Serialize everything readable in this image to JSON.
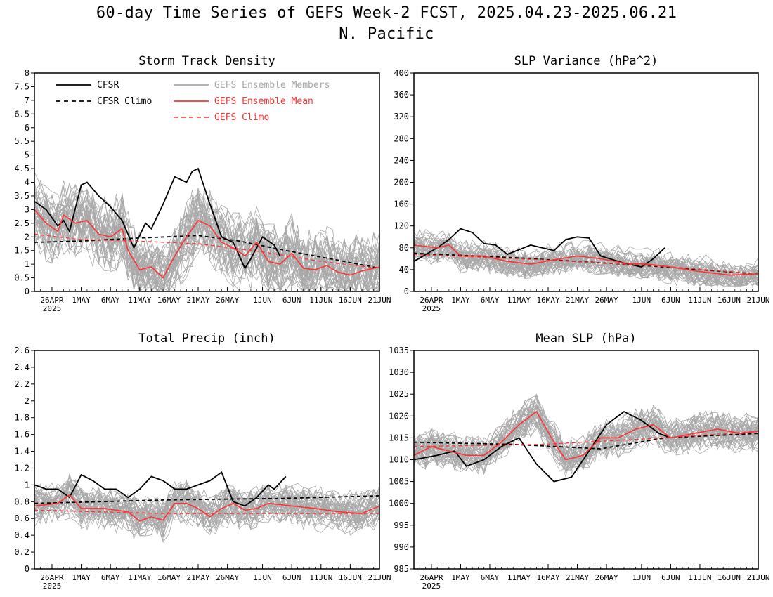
{
  "title": {
    "line1": "60-day Time Series of GEFS Week-2 FCST, 2025.04.23-2025.06.21",
    "line2": "N. Pacific"
  },
  "colors": {
    "cfsr": "#000000",
    "gefs_mean": "#ff3333",
    "gefs_members": "#a8a8a8",
    "gefs_climo": "#ff3333"
  },
  "legend": {
    "cfsr": "CFSR",
    "cfsr_climo": "CFSR Climo",
    "gefs_members": "GEFS Ensemble Members",
    "gefs_mean": "GEFS Ensemble Mean",
    "gefs_climo": "GEFS Climo",
    "placement": "top-left of Storm Track Density panel"
  },
  "x_axis": {
    "start_date": "2025-04-23",
    "end_date": "2025-06-21",
    "ticks": [
      "26APR",
      "1MAY",
      "6MAY",
      "11MAY",
      "16MAY",
      "21MAY",
      "26MAY",
      "1JUN",
      "6JUN",
      "11JUN",
      "16JUN",
      "21JUN"
    ],
    "tick_dates": [
      "2025-04-26",
      "2025-05-01",
      "2025-05-06",
      "2025-05-11",
      "2025-05-16",
      "2025-05-21",
      "2025-05-26",
      "2025-06-01",
      "2025-06-06",
      "2025-06-11",
      "2025-06-16",
      "2025-06-21"
    ],
    "year_label": "2025"
  },
  "chart_data": [
    {
      "type": "line",
      "title": "Storm Track Density",
      "ylim": [
        0,
        8
      ],
      "yticks": [
        "0",
        "0.5",
        "1",
        "1.5",
        "2",
        "2.5",
        "3",
        "3.5",
        "4",
        "4.5",
        "5",
        "5.5",
        "6",
        "6.5",
        "7",
        "7.5",
        "8"
      ],
      "grid": false,
      "series": [
        {
          "name": "CFSR",
          "x": [
            "2025-04-23",
            "2025-04-25",
            "2025-04-27",
            "2025-04-28",
            "2025-04-29",
            "2025-05-01",
            "2025-05-02",
            "2025-05-04",
            "2025-05-06",
            "2025-05-08",
            "2025-05-10",
            "2025-05-12",
            "2025-05-13",
            "2025-05-15",
            "2025-05-17",
            "2025-05-19",
            "2025-05-20",
            "2025-05-21",
            "2025-05-23",
            "2025-05-25",
            "2025-05-27",
            "2025-05-29",
            "2025-05-30",
            "2025-06-01",
            "2025-06-03",
            "2025-06-04"
          ],
          "values": [
            3.3,
            3.0,
            2.4,
            2.6,
            2.2,
            3.9,
            4.0,
            3.5,
            3.1,
            2.6,
            1.6,
            2.5,
            2.3,
            3.2,
            4.2,
            4.0,
            4.4,
            4.5,
            3.2,
            2.0,
            1.8,
            0.85,
            1.2,
            2.0,
            1.7,
            1.3
          ]
        },
        {
          "name": "CFSR Climo",
          "x": [
            "2025-04-23",
            "2025-05-01",
            "2025-05-10",
            "2025-05-21",
            "2025-05-28",
            "2025-06-05",
            "2025-06-15",
            "2025-06-21"
          ],
          "values": [
            1.8,
            1.85,
            1.95,
            2.05,
            1.85,
            1.5,
            1.1,
            0.85
          ]
        },
        {
          "name": "GEFS Ensemble Mean",
          "x": [
            "2025-04-23",
            "2025-04-25",
            "2025-04-27",
            "2025-04-28",
            "2025-04-30",
            "2025-05-02",
            "2025-05-04",
            "2025-05-06",
            "2025-05-08",
            "2025-05-09",
            "2025-05-11",
            "2025-05-13",
            "2025-05-15",
            "2025-05-17",
            "2025-05-19",
            "2025-05-21",
            "2025-05-23",
            "2025-05-25",
            "2025-05-27",
            "2025-05-29",
            "2025-05-31",
            "2025-06-02",
            "2025-06-04",
            "2025-06-06",
            "2025-06-08",
            "2025-06-10",
            "2025-06-12",
            "2025-06-14",
            "2025-06-16",
            "2025-06-18",
            "2025-06-21"
          ],
          "values": [
            3.0,
            2.5,
            2.2,
            2.8,
            2.5,
            2.6,
            2.1,
            2.0,
            2.3,
            1.5,
            0.8,
            0.9,
            0.5,
            1.3,
            2.0,
            2.6,
            2.4,
            1.8,
            1.6,
            1.3,
            1.8,
            1.1,
            1.0,
            1.4,
            0.85,
            0.8,
            0.95,
            0.7,
            0.6,
            0.75,
            0.9
          ]
        },
        {
          "name": "GEFS Climo",
          "x": [
            "2025-04-23",
            "2025-05-01",
            "2025-05-10",
            "2025-05-21",
            "2025-06-01",
            "2025-06-11",
            "2025-06-21"
          ],
          "values": [
            2.1,
            1.9,
            1.85,
            1.75,
            1.45,
            1.1,
            0.85
          ]
        }
      ],
      "members": {
        "count": 40,
        "center": "GEFS Ensemble Mean",
        "spread": 1.4,
        "floor": 0,
        "ceiling": 5.8
      }
    },
    {
      "type": "line",
      "title": "SLP Variance (hPa^2)",
      "ylim": [
        0,
        400
      ],
      "yticks": [
        "0",
        "40",
        "80",
        "120",
        "160",
        "200",
        "240",
        "280",
        "320",
        "360",
        "400"
      ],
      "grid": false,
      "series": [
        {
          "name": "CFSR",
          "x": [
            "2025-04-23",
            "2025-04-27",
            "2025-04-29",
            "2025-05-01",
            "2025-05-03",
            "2025-05-05",
            "2025-05-07",
            "2025-05-09",
            "2025-05-13",
            "2025-05-17",
            "2025-05-19",
            "2025-05-21",
            "2025-05-23",
            "2025-05-25",
            "2025-05-29",
            "2025-06-01",
            "2025-06-03",
            "2025-06-05"
          ],
          "values": [
            55,
            80,
            95,
            115,
            108,
            88,
            85,
            68,
            85,
            75,
            95,
            100,
            98,
            65,
            52,
            45,
            60,
            80
          ]
        },
        {
          "name": "CFSR Climo",
          "x": [
            "2025-04-23",
            "2025-05-10",
            "2025-06-01",
            "2025-06-21"
          ],
          "values": [
            70,
            62,
            48,
            32
          ]
        },
        {
          "name": "GEFS Ensemble Mean",
          "x": [
            "2025-04-23",
            "2025-04-27",
            "2025-04-29",
            "2025-05-01",
            "2025-05-05",
            "2025-05-09",
            "2025-05-13",
            "2025-05-17",
            "2025-05-21",
            "2025-05-25",
            "2025-05-29",
            "2025-06-02",
            "2025-06-06",
            "2025-06-10",
            "2025-06-16",
            "2025-06-21"
          ],
          "values": [
            85,
            80,
            85,
            65,
            65,
            55,
            50,
            58,
            65,
            60,
            52,
            50,
            45,
            38,
            30,
            32
          ]
        },
        {
          "name": "GEFS Climo",
          "x": [
            "2025-04-23",
            "2025-05-15",
            "2025-06-05",
            "2025-06-21"
          ],
          "values": [
            68,
            58,
            46,
            32
          ]
        }
      ],
      "members": {
        "count": 40,
        "center": "GEFS Ensemble Mean",
        "spread": 30,
        "floor": 10,
        "ceiling": 230
      }
    },
    {
      "type": "line",
      "title": "Total Precip (inch)",
      "ylim": [
        0,
        2.6
      ],
      "yticks": [
        "0",
        "0.2",
        "0.4",
        "0.6",
        "0.8",
        "1",
        "1.2",
        "1.4",
        "1.6",
        "1.8",
        "2",
        "2.2",
        "2.4",
        "2.6"
      ],
      "grid": false,
      "series": [
        {
          "name": "CFSR",
          "x": [
            "2025-04-23",
            "2025-04-25",
            "2025-04-27",
            "2025-04-29",
            "2025-05-01",
            "2025-05-03",
            "2025-05-05",
            "2025-05-07",
            "2025-05-09",
            "2025-05-11",
            "2025-05-13",
            "2025-05-15",
            "2025-05-17",
            "2025-05-19",
            "2025-05-21",
            "2025-05-23",
            "2025-05-25",
            "2025-05-27",
            "2025-05-29",
            "2025-05-31",
            "2025-06-02",
            "2025-06-03",
            "2025-06-05"
          ],
          "values": [
            1.0,
            0.95,
            0.95,
            0.85,
            1.12,
            1.05,
            0.95,
            0.95,
            0.85,
            0.95,
            1.1,
            1.05,
            0.95,
            0.95,
            1.0,
            1.05,
            1.15,
            0.8,
            0.75,
            0.85,
            1.0,
            0.95,
            1.1
          ]
        },
        {
          "name": "CFSR Climo",
          "x": [
            "2025-04-23",
            "2025-05-15",
            "2025-06-05",
            "2025-06-21"
          ],
          "values": [
            0.78,
            0.82,
            0.84,
            0.87
          ]
        },
        {
          "name": "GEFS Ensemble Mean",
          "x": [
            "2025-04-23",
            "2025-04-27",
            "2025-04-29",
            "2025-05-01",
            "2025-05-05",
            "2025-05-09",
            "2025-05-11",
            "2025-05-13",
            "2025-05-15",
            "2025-05-17",
            "2025-05-19",
            "2025-05-21",
            "2025-05-23",
            "2025-05-25",
            "2025-05-27",
            "2025-05-29",
            "2025-05-31",
            "2025-06-02",
            "2025-06-06",
            "2025-06-10",
            "2025-06-14",
            "2025-06-18",
            "2025-06-21"
          ],
          "values": [
            0.75,
            0.78,
            0.88,
            0.72,
            0.72,
            0.68,
            0.57,
            0.62,
            0.58,
            0.78,
            0.78,
            0.72,
            0.62,
            0.72,
            0.78,
            0.7,
            0.72,
            0.78,
            0.75,
            0.72,
            0.68,
            0.66,
            0.75
          ]
        },
        {
          "name": "GEFS Climo",
          "x": [
            "2025-04-23",
            "2025-05-15",
            "2025-06-05",
            "2025-06-21"
          ],
          "values": [
            0.7,
            0.66,
            0.66,
            0.66
          ]
        }
      ],
      "members": {
        "count": 40,
        "center": "GEFS Ensemble Mean",
        "spread": 0.25,
        "floor": 0.12,
        "ceiling": 1.5
      }
    },
    {
      "type": "line",
      "title": "Mean SLP (hPa)",
      "ylim": [
        985,
        1035
      ],
      "yticks": [
        "985",
        "990",
        "995",
        "1000",
        "1005",
        "1010",
        "1015",
        "1020",
        "1025",
        "1030",
        "1035"
      ],
      "grid": false,
      "series": [
        {
          "name": "CFSR",
          "x": [
            "2025-04-23",
            "2025-04-27",
            "2025-04-30",
            "2025-05-02",
            "2025-05-05",
            "2025-05-08",
            "2025-05-11",
            "2025-05-14",
            "2025-05-17",
            "2025-05-20",
            "2025-05-23",
            "2025-05-26",
            "2025-05-29",
            "2025-06-01",
            "2025-06-04",
            "2025-06-06"
          ],
          "values": [
            1010,
            1011,
            1012,
            1008.5,
            1010,
            1013,
            1015,
            1009,
            1005,
            1006,
            1012,
            1018,
            1021,
            1019,
            1016,
            1015
          ]
        },
        {
          "name": "CFSR Climo",
          "x": [
            "2025-04-23",
            "2025-05-10",
            "2025-05-25",
            "2025-06-05",
            "2025-06-21"
          ],
          "values": [
            1014,
            1013.5,
            1012.5,
            1015,
            1016
          ]
        },
        {
          "name": "GEFS Ensemble Mean",
          "x": [
            "2025-04-23",
            "2025-04-26",
            "2025-04-29",
            "2025-05-02",
            "2025-05-05",
            "2025-05-08",
            "2025-05-11",
            "2025-05-14",
            "2025-05-17",
            "2025-05-19",
            "2025-05-22",
            "2025-05-25",
            "2025-05-28",
            "2025-05-31",
            "2025-06-03",
            "2025-06-06",
            "2025-06-10",
            "2025-06-14",
            "2025-06-18",
            "2025-06-21"
          ],
          "values": [
            1011,
            1013,
            1012,
            1011,
            1011,
            1014,
            1018,
            1021,
            1014,
            1010,
            1011,
            1015,
            1015,
            1017,
            1018,
            1015,
            1016,
            1017,
            1016,
            1016.5
          ]
        },
        {
          "name": "GEFS Climo",
          "x": [
            "2025-04-23",
            "2025-05-15",
            "2025-06-05",
            "2025-06-21"
          ],
          "values": [
            1013,
            1013.5,
            1015,
            1016.5
          ]
        }
      ],
      "members": {
        "count": 40,
        "center": "GEFS Ensemble Mean",
        "spread": 4.5,
        "floor": 999,
        "ceiling": 1029.5
      }
    }
  ]
}
